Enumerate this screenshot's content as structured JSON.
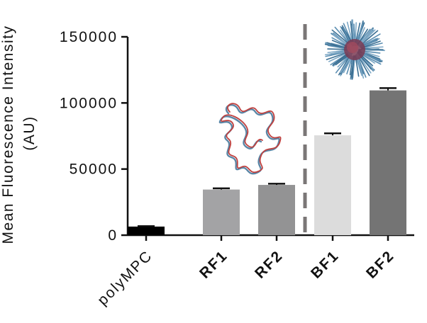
{
  "chart_data": {
    "type": "bar",
    "categories": [
      "polyMPC",
      "RF1",
      "RF2",
      "BF1",
      "BF2"
    ],
    "bold_categories": [
      "RF1",
      "RF2",
      "BF1",
      "BF2"
    ],
    "values": [
      6500,
      34500,
      38000,
      75500,
      109500
    ],
    "errors": [
      300,
      900,
      900,
      1500,
      1700
    ],
    "colors": [
      "#000000",
      "#a3a3a5",
      "#939394",
      "#dcdcdc",
      "#747474"
    ],
    "ylabel_line1": "Mean Fluorescence Intensity",
    "ylabel_line2": "(AU)",
    "ylim": [
      0,
      150000
    ],
    "yticks": [
      0,
      50000,
      100000,
      150000
    ],
    "ytick_labels": [
      "0",
      "50000",
      "100000",
      "150000"
    ],
    "grid": false,
    "divider_after_category": "RF2",
    "icons": {
      "random_coil": "random-coil-polymer-icon",
      "bottlebrush": "bottlebrush-micelle-icon"
    }
  }
}
